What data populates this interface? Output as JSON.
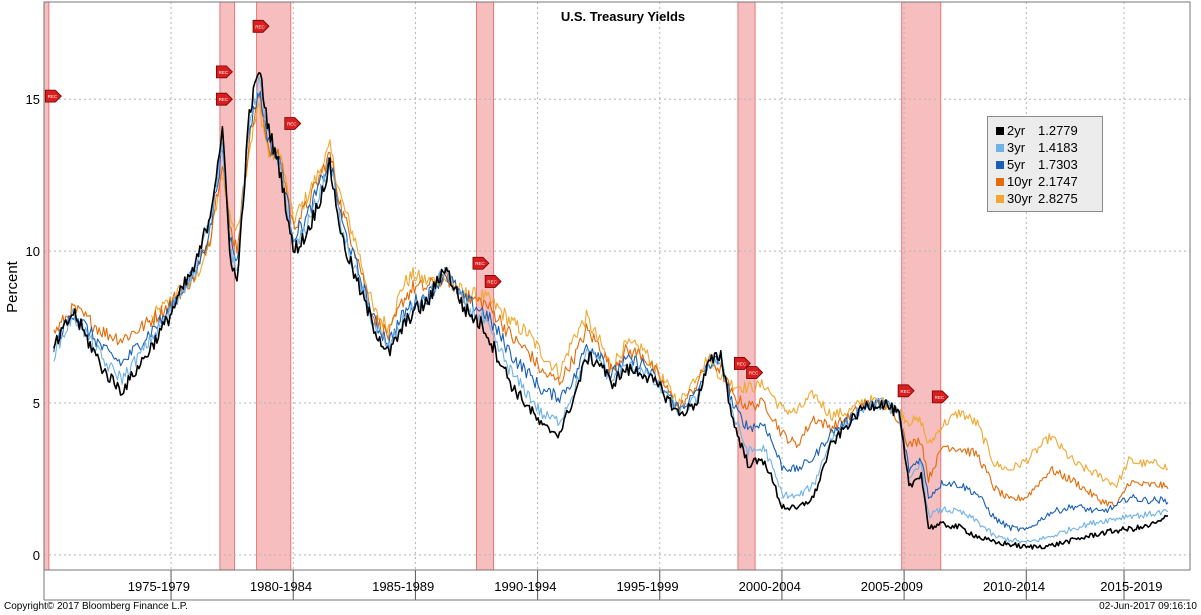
{
  "chart_data": {
    "type": "line",
    "title": "U.S. Treasury Yields",
    "ylabel": "Percent",
    "xlabel": "",
    "xlim": [
      1972.8,
      2019.7
    ],
    "ylim": [
      -0.5,
      18.2
    ],
    "yticks": [
      0,
      5,
      10,
      15
    ],
    "period_labels": [
      {
        "label": "1975-1979",
        "x": 1977.5
      },
      {
        "label": "1980-1984",
        "x": 1982.5
      },
      {
        "label": "1985-1989",
        "x": 1987.5
      },
      {
        "label": "1990-1994",
        "x": 1992.5
      },
      {
        "label": "1995-1999",
        "x": 1997.5
      },
      {
        "label": "2000-2004",
        "x": 2002.5
      },
      {
        "label": "2005-2009",
        "x": 2007.5
      },
      {
        "label": "2010-2014",
        "x": 2012.5
      },
      {
        "label": "2015-2019",
        "x": 2017.3
      }
    ],
    "period_dividers": [
      1978.0,
      1983.0,
      1988.0,
      1993.0,
      1998.0,
      2003.0,
      2008.0,
      2013.0,
      2017.0
    ],
    "recessions": [
      {
        "start": 1972.8,
        "end": 1973.0
      },
      {
        "start": 1980.0,
        "end": 1980.6
      },
      {
        "start": 1981.5,
        "end": 1982.9
      },
      {
        "start": 1990.5,
        "end": 1991.2
      },
      {
        "start": 2001.2,
        "end": 2001.9
      },
      {
        "start": 2007.9,
        "end": 2009.5
      }
    ],
    "markers": [
      {
        "label": "REC",
        "x": 1973.1,
        "y": 15.1
      },
      {
        "label": "REC",
        "x": 1980.1,
        "y": 15.9
      },
      {
        "label": "REC",
        "x": 1980.1,
        "y": 15.0
      },
      {
        "label": "REC",
        "x": 1981.6,
        "y": 17.4
      },
      {
        "label": "REC",
        "x": 1982.9,
        "y": 14.2
      },
      {
        "label": "REC",
        "x": 1990.6,
        "y": 9.6
      },
      {
        "label": "REC",
        "x": 1991.1,
        "y": 9.0
      },
      {
        "label": "REC",
        "x": 2001.3,
        "y": 6.3
      },
      {
        "label": "REC",
        "x": 2001.8,
        "y": 6.0
      },
      {
        "label": "REC",
        "x": 2008.0,
        "y": 5.4
      },
      {
        "label": "REC",
        "x": 2009.4,
        "y": 5.2
      }
    ],
    "series": [
      {
        "name": "2yr",
        "value": "1.2779",
        "color": "#000000",
        "x": [
          1973.2,
          1974.0,
          1974.5,
          1975.3,
          1976.0,
          1977.0,
          1977.9,
          1978.5,
          1979.0,
          1979.6,
          1980.1,
          1980.4,
          1980.7,
          1981.2,
          1981.6,
          1982.0,
          1982.5,
          1983.0,
          1983.5,
          1984.0,
          1984.5,
          1985.0,
          1985.6,
          1986.3,
          1986.9,
          1987.5,
          1987.9,
          1988.5,
          1989.2,
          1990.0,
          1990.8,
          1991.4,
          1992.0,
          1992.6,
          1993.2,
          1993.9,
          1994.5,
          1995.0,
          1995.6,
          1996.0,
          1996.6,
          1997.3,
          1998.0,
          1998.8,
          1999.5,
          2000.0,
          2000.5,
          2001.0,
          2001.6,
          2002.3,
          2003.0,
          2003.6,
          2004.3,
          2005.0,
          2005.7,
          2006.4,
          2007.2,
          2007.8,
          2008.2,
          2008.7,
          2009.0,
          2009.6,
          2010.3,
          2011.0,
          2011.7,
          2012.3,
          2013.0,
          2014.0,
          2015.0,
          2016.0,
          2016.7,
          2017.2,
          2017.8,
          2018.5,
          2018.8
        ],
        "y": [
          6.8,
          8.0,
          7.2,
          6.0,
          5.4,
          6.6,
          7.8,
          8.8,
          9.5,
          11.2,
          14.0,
          10.0,
          8.9,
          14.5,
          16.0,
          14.0,
          12.5,
          10.0,
          10.5,
          11.5,
          12.8,
          10.4,
          9.0,
          7.5,
          6.6,
          7.5,
          8.0,
          8.3,
          9.5,
          8.1,
          7.5,
          6.5,
          5.5,
          4.9,
          4.2,
          4.0,
          5.2,
          6.5,
          6.3,
          5.6,
          6.1,
          6.0,
          5.5,
          4.6,
          5.0,
          6.3,
          6.6,
          4.4,
          3.0,
          3.1,
          1.6,
          1.5,
          1.9,
          3.6,
          4.3,
          4.9,
          5.0,
          4.6,
          2.2,
          2.7,
          0.9,
          1.0,
          0.9,
          0.6,
          0.4,
          0.35,
          0.25,
          0.3,
          0.5,
          0.7,
          0.8,
          0.85,
          0.9,
          1.1,
          1.28
        ]
      },
      {
        "name": "3yr",
        "value": "1.4183",
        "color": "#6fb2e6",
        "x": [
          1973.2,
          1974.0,
          1974.5,
          1975.3,
          1976.0,
          1977.0,
          1977.9,
          1978.5,
          1979.0,
          1979.6,
          1980.1,
          1980.4,
          1980.7,
          1981.2,
          1981.6,
          1982.0,
          1982.5,
          1983.0,
          1983.5,
          1984.0,
          1984.5,
          1985.0,
          1985.6,
          1986.3,
          1986.9,
          1987.5,
          1987.9,
          1988.5,
          1989.2,
          1990.0,
          1990.8,
          1991.4,
          1992.0,
          1992.6,
          1993.2,
          1993.9,
          1994.5,
          1995.0,
          1995.6,
          1996.0,
          1996.6,
          1997.3,
          1998.0,
          1998.8,
          1999.5,
          2000.0,
          2000.5,
          2001.0,
          2001.6,
          2002.3,
          2003.0,
          2003.6,
          2004.3,
          2005.0,
          2005.7,
          2006.4,
          2007.2,
          2007.8,
          2008.2,
          2008.7,
          2009.0,
          2009.6,
          2010.3,
          2011.0,
          2011.7,
          2012.3,
          2013.0,
          2014.0,
          2015.0,
          2016.0,
          2016.7,
          2017.2,
          2017.8,
          2018.5,
          2018.8
        ],
        "y": [
          6.6,
          7.9,
          7.3,
          6.3,
          5.8,
          6.9,
          7.9,
          8.8,
          9.4,
          11.0,
          13.7,
          10.2,
          9.2,
          14.3,
          15.6,
          13.8,
          12.6,
          10.2,
          10.7,
          11.7,
          12.9,
          10.6,
          9.2,
          7.6,
          6.8,
          7.7,
          8.1,
          8.4,
          9.4,
          8.2,
          7.7,
          6.8,
          5.9,
          5.3,
          4.6,
          4.4,
          5.4,
          6.6,
          6.4,
          5.7,
          6.2,
          6.1,
          5.5,
          4.7,
          5.1,
          6.3,
          6.5,
          4.6,
          3.4,
          3.5,
          2.0,
          1.9,
          2.3,
          3.8,
          4.4,
          4.9,
          5.0,
          4.6,
          2.4,
          3.0,
          1.3,
          1.5,
          1.4,
          1.1,
          0.6,
          0.5,
          0.4,
          0.6,
          0.9,
          1.1,
          1.2,
          1.3,
          1.3,
          1.4,
          1.42
        ]
      },
      {
        "name": "5yr",
        "value": "1.7303",
        "color": "#1a5fb4",
        "x": [
          1973.2,
          1974.0,
          1974.5,
          1975.3,
          1976.0,
          1977.0,
          1977.9,
          1978.5,
          1979.0,
          1979.6,
          1980.1,
          1980.4,
          1980.7,
          1981.2,
          1981.6,
          1982.0,
          1982.5,
          1983.0,
          1983.5,
          1984.0,
          1984.5,
          1985.0,
          1985.6,
          1986.3,
          1986.9,
          1987.5,
          1987.9,
          1988.5,
          1989.2,
          1990.0,
          1990.8,
          1991.4,
          1992.0,
          1992.6,
          1993.2,
          1993.9,
          1994.5,
          1995.0,
          1995.6,
          1996.0,
          1996.6,
          1997.3,
          1998.0,
          1998.8,
          1999.5,
          2000.0,
          2000.5,
          2001.0,
          2001.6,
          2002.3,
          2003.0,
          2003.6,
          2004.3,
          2005.0,
          2005.7,
          2006.4,
          2007.2,
          2007.8,
          2008.2,
          2008.7,
          2009.0,
          2009.6,
          2010.3,
          2011.0,
          2011.7,
          2012.3,
          2013.0,
          2014.0,
          2015.0,
          2016.0,
          2016.7,
          2017.2,
          2017.8,
          2018.5,
          2018.8
        ],
        "y": [
          6.9,
          8.0,
          7.5,
          6.7,
          6.3,
          7.2,
          8.0,
          8.8,
          9.3,
          10.7,
          13.4,
          10.5,
          9.6,
          14.0,
          15.3,
          13.6,
          12.8,
          10.5,
          11.0,
          12.0,
          13.0,
          10.9,
          9.5,
          7.7,
          7.0,
          7.9,
          8.3,
          8.5,
          9.3,
          8.4,
          8.0,
          7.3,
          6.5,
          6.0,
          5.4,
          5.2,
          5.8,
          6.9,
          6.6,
          5.9,
          6.4,
          6.3,
          5.6,
          4.8,
          5.3,
          6.3,
          6.4,
          4.9,
          4.2,
          4.3,
          2.9,
          2.8,
          3.2,
          4.0,
          4.4,
          4.9,
          5.0,
          4.6,
          2.8,
          3.2,
          1.9,
          2.4,
          2.3,
          2.0,
          1.2,
          0.9,
          0.8,
          1.4,
          1.6,
          1.4,
          1.6,
          1.9,
          1.8,
          1.8,
          1.73
        ]
      },
      {
        "name": "10yr",
        "value": "2.1747",
        "color": "#e36c0a",
        "x": [
          1973.2,
          1974.0,
          1974.5,
          1975.3,
          1976.0,
          1977.0,
          1977.9,
          1978.5,
          1979.0,
          1979.6,
          1980.1,
          1980.4,
          1980.7,
          1981.2,
          1981.6,
          1982.0,
          1982.5,
          1983.0,
          1983.5,
          1984.0,
          1984.5,
          1985.0,
          1985.6,
          1986.3,
          1986.9,
          1987.5,
          1987.9,
          1988.5,
          1989.2,
          1990.0,
          1990.8,
          1991.4,
          1992.0,
          1992.6,
          1993.2,
          1993.9,
          1994.5,
          1995.0,
          1995.6,
          1996.0,
          1996.6,
          1997.3,
          1998.0,
          1998.8,
          1999.5,
          2000.0,
          2000.5,
          2001.0,
          2001.6,
          2002.3,
          2003.0,
          2003.6,
          2004.3,
          2005.0,
          2005.7,
          2006.4,
          2007.2,
          2007.8,
          2008.2,
          2008.7,
          2009.0,
          2009.6,
          2010.3,
          2011.0,
          2011.7,
          2012.3,
          2013.0,
          2014.0,
          2015.0,
          2016.0,
          2016.7,
          2017.2,
          2017.8,
          2018.5,
          2018.8
        ],
        "y": [
          7.3,
          8.1,
          7.8,
          7.3,
          7.1,
          7.6,
          8.2,
          8.8,
          9.2,
          10.5,
          13.0,
          10.8,
          10.1,
          13.7,
          15.1,
          13.4,
          13.0,
          10.8,
          11.4,
          12.3,
          13.2,
          11.3,
          9.9,
          7.8,
          7.2,
          8.4,
          8.8,
          8.8,
          9.2,
          8.5,
          8.3,
          7.8,
          7.1,
          6.7,
          6.0,
          5.7,
          6.5,
          7.4,
          6.8,
          6.1,
          6.7,
          6.6,
          5.8,
          4.8,
          5.6,
          6.4,
          6.1,
          5.2,
          4.9,
          5.0,
          4.0,
          3.6,
          4.5,
          4.2,
          4.5,
          5.0,
          4.9,
          4.5,
          3.6,
          3.8,
          2.5,
          3.6,
          3.5,
          3.3,
          2.2,
          1.8,
          1.9,
          2.8,
          2.4,
          1.8,
          1.6,
          2.4,
          2.3,
          2.3,
          2.17
        ]
      },
      {
        "name": "30yr",
        "value": "2.8275",
        "color": "#f0a830",
        "x": [
          1977.2,
          1977.9,
          1978.5,
          1979.0,
          1979.6,
          1980.1,
          1980.4,
          1980.7,
          1981.2,
          1981.6,
          1982.0,
          1982.5,
          1983.0,
          1983.5,
          1984.0,
          1984.5,
          1985.0,
          1985.6,
          1986.3,
          1986.9,
          1987.5,
          1987.9,
          1988.5,
          1989.2,
          1990.0,
          1990.8,
          1991.4,
          1992.0,
          1992.6,
          1993.2,
          1993.9,
          1994.5,
          1995.0,
          1995.6,
          1996.0,
          1996.6,
          1997.3,
          1998.0,
          1998.8,
          1999.5,
          2000.0,
          2000.5,
          2001.0,
          2001.6,
          2002.3,
          2003.0,
          2003.6,
          2004.3,
          2005.0,
          2005.7,
          2006.4,
          2007.2,
          2007.8,
          2008.2,
          2008.7,
          2009.0,
          2009.6,
          2010.3,
          2011.0,
          2011.7,
          2012.3,
          2013.0,
          2014.0,
          2015.0,
          2016.0,
          2016.7,
          2017.2,
          2017.8,
          2018.5,
          2018.8
        ],
        "y": [
          7.8,
          8.3,
          8.8,
          9.1,
          10.3,
          12.6,
          11.2,
          10.6,
          13.4,
          14.8,
          13.2,
          13.1,
          11.0,
          11.7,
          12.5,
          13.4,
          11.6,
          10.2,
          8.0,
          7.5,
          8.9,
          9.2,
          9.0,
          9.1,
          8.6,
          8.5,
          8.1,
          7.6,
          7.3,
          6.6,
          6.0,
          7.2,
          7.8,
          6.9,
          6.2,
          6.9,
          6.8,
          5.9,
          5.0,
          5.9,
          6.5,
          5.9,
          5.6,
          5.5,
          5.6,
          4.8,
          4.7,
          5.3,
          4.6,
          4.7,
          5.1,
          5.0,
          4.7,
          4.4,
          4.4,
          3.6,
          4.3,
          4.7,
          4.3,
          3.0,
          2.8,
          3.1,
          3.9,
          3.0,
          2.6,
          2.3,
          3.1,
          3.0,
          3.0,
          2.83
        ]
      }
    ]
  },
  "footer": {
    "copyright": "Copyright© 2017 Bloomberg Finance L.P.",
    "timestamp": "02-Jun-2017 09:16:10"
  }
}
